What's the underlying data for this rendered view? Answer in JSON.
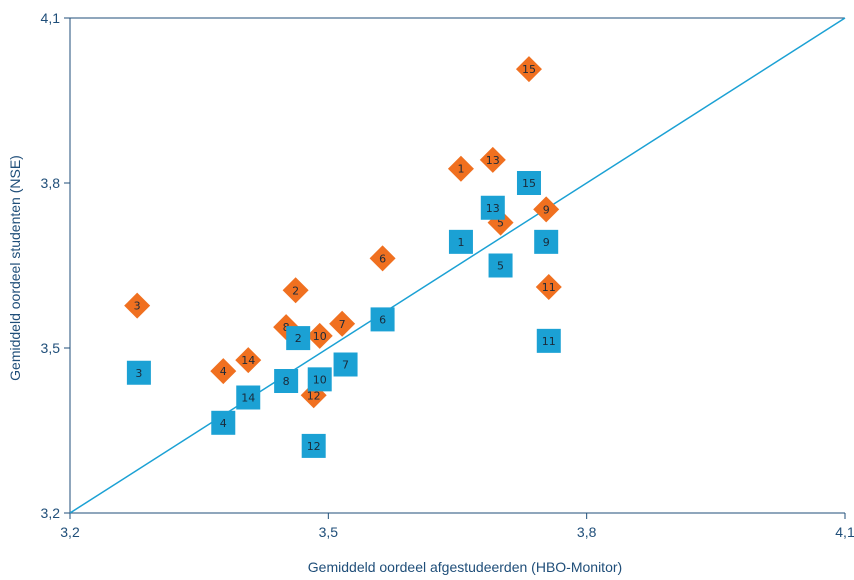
{
  "chart_data": {
    "type": "scatter",
    "title": "",
    "xlabel": "Gemiddeld oordeel afgestudeerden (HBO-Monitor)",
    "ylabel": "Gemiddeld oordeel studenten (NSE)",
    "xlim": [
      3.2,
      4.1
    ],
    "ylim": [
      3.2,
      4.1
    ],
    "x_ticks": [
      "3,2",
      "3,5",
      "3,8",
      "4,1"
    ],
    "y_ticks": [
      "3,2",
      "3,5",
      "3,8",
      "4,1"
    ],
    "x_tick_values": [
      3.2,
      3.5,
      3.8,
      4.1
    ],
    "y_tick_values": [
      3.2,
      3.5,
      3.8,
      4.1
    ],
    "grid": false,
    "reference_line": {
      "from": [
        3.2,
        3.2
      ],
      "to": [
        4.1,
        4.1
      ],
      "color": "#1ba1d4"
    },
    "series": [
      {
        "marker": "diamond",
        "color": "#f07020",
        "points": [
          {
            "label": "1",
            "x": 3.654,
            "y": 3.826
          },
          {
            "label": "2",
            "x": 3.462,
            "y": 3.605
          },
          {
            "label": "3",
            "x": 3.278,
            "y": 3.577
          },
          {
            "label": "4",
            "x": 3.378,
            "y": 3.458
          },
          {
            "label": "5",
            "x": 3.7,
            "y": 3.728
          },
          {
            "label": "6",
            "x": 3.563,
            "y": 3.663
          },
          {
            "label": "7",
            "x": 3.516,
            "y": 3.544
          },
          {
            "label": "8",
            "x": 3.451,
            "y": 3.538
          },
          {
            "label": "9",
            "x": 3.753,
            "y": 3.752
          },
          {
            "label": "10",
            "x": 3.49,
            "y": 3.522
          },
          {
            "label": "11",
            "x": 3.756,
            "y": 3.611
          },
          {
            "label": "12",
            "x": 3.483,
            "y": 3.414
          },
          {
            "label": "13",
            "x": 3.691,
            "y": 3.842
          },
          {
            "label": "14",
            "x": 3.407,
            "y": 3.478
          },
          {
            "label": "15",
            "x": 3.733,
            "y": 4.007
          }
        ]
      },
      {
        "marker": "square",
        "color": "#1ba1d4",
        "points": [
          {
            "label": "1",
            "x": 3.654,
            "y": 3.693
          },
          {
            "label": "2",
            "x": 3.465,
            "y": 3.518
          },
          {
            "label": "3",
            "x": 3.28,
            "y": 3.455
          },
          {
            "label": "4",
            "x": 3.378,
            "y": 3.364
          },
          {
            "label": "5",
            "x": 3.7,
            "y": 3.65
          },
          {
            "label": "6",
            "x": 3.563,
            "y": 3.552
          },
          {
            "label": "7",
            "x": 3.52,
            "y": 3.47
          },
          {
            "label": "8",
            "x": 3.451,
            "y": 3.44
          },
          {
            "label": "9",
            "x": 3.753,
            "y": 3.693
          },
          {
            "label": "10",
            "x": 3.49,
            "y": 3.443
          },
          {
            "label": "11",
            "x": 3.756,
            "y": 3.513
          },
          {
            "label": "12",
            "x": 3.483,
            "y": 3.322
          },
          {
            "label": "13",
            "x": 3.691,
            "y": 3.755
          },
          {
            "label": "14",
            "x": 3.407,
            "y": 3.41
          },
          {
            "label": "15",
            "x": 3.733,
            "y": 3.8
          }
        ]
      }
    ]
  }
}
